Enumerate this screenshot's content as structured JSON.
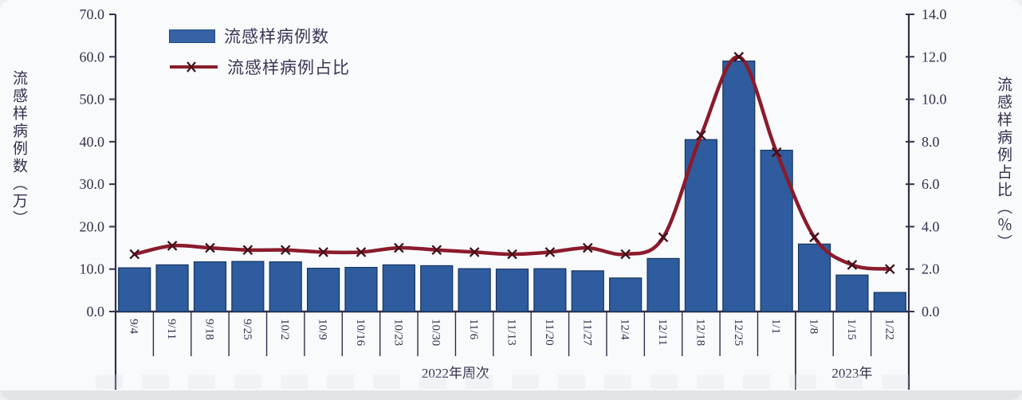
{
  "page": {
    "background": "#edeff0",
    "card_background": "#f8fafc",
    "footer_strip_color": "#e2e5e7"
  },
  "legend": {
    "cases_label": "流感样病例数",
    "ratio_label": "流感样病例占比"
  },
  "axes": {
    "left_title": "流感样病例数（万）",
    "right_title": "流感样病例占比（％）",
    "left_ticks": [
      "70.0",
      "60.0",
      "50.0",
      "40.0",
      "30.0",
      "20.0",
      "10.0",
      "0.0"
    ],
    "right_ticks": [
      "14.0",
      "12.0",
      "10.0",
      "8.0",
      "6.0",
      "4.0",
      "2.0",
      "0.0"
    ]
  },
  "colors": {
    "bar_fill": "#2e5c9e",
    "bar_stroke": "#16355f",
    "line_stroke": "#8b1b2b",
    "marker_stroke": "#40101c",
    "axis_color": "#332e4e",
    "text_color": "#332e4e",
    "legend_bar_swatch": "#3663a6"
  },
  "chart_data": {
    "type": "bar+line combo",
    "categories": [
      "9/4",
      "9/11",
      "9/18",
      "9/25",
      "10/2",
      "10/9",
      "10/16",
      "10/23",
      "10/30",
      "11/6",
      "11/13",
      "11/20",
      "11/27",
      "12/4",
      "12/11",
      "12/18",
      "12/25",
      "1/1",
      "1/8",
      "1/15",
      "1/22"
    ],
    "series": [
      {
        "name": "流感样病例数",
        "type": "bar",
        "axis": "left",
        "values": [
          10.3,
          11.0,
          11.7,
          11.8,
          11.7,
          10.2,
          10.4,
          11.0,
          10.8,
          10.1,
          10.0,
          10.1,
          9.6,
          7.9,
          12.5,
          40.5,
          59.0,
          38.0,
          15.9,
          8.6,
          4.5
        ]
      },
      {
        "name": "流感样病例占比",
        "type": "line",
        "axis": "right",
        "values": [
          2.7,
          3.1,
          3.0,
          2.9,
          2.9,
          2.8,
          2.8,
          3.0,
          2.9,
          2.8,
          2.7,
          2.8,
          3.0,
          2.7,
          3.5,
          8.3,
          12.0,
          7.5,
          3.5,
          2.2,
          2.0
        ]
      }
    ],
    "left_axis": {
      "title": "流感样病例数（万）",
      "min": 0,
      "max": 70,
      "step": 10
    },
    "right_axis": {
      "title": "流感样病例占比（％）",
      "min": 0,
      "max": 14,
      "step": 2
    },
    "x_groups": [
      {
        "label": "2022年周次",
        "start_index": 0,
        "end_index": 17
      },
      {
        "label": "2023年",
        "start_index": 18,
        "end_index": 20
      }
    ],
    "grid": false,
    "legend_position": "top-left"
  }
}
